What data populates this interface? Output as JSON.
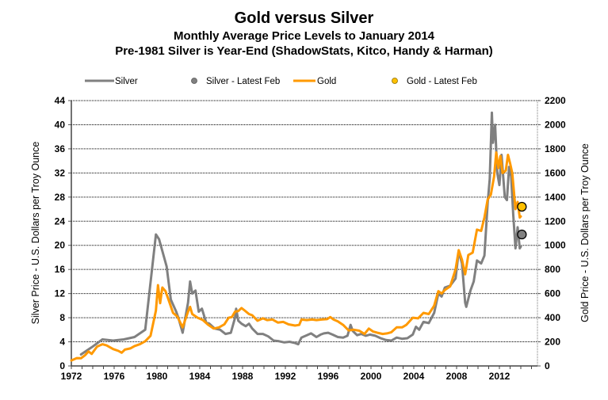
{
  "chart_data": {
    "type": "line",
    "title": "Gold versus Silver",
    "subtitle": "Monthly Average Price Levels to January 2014",
    "subtitle2": "Pre-1981 Silver is Year-End (ShadowStats, Kitco, Handy & Harman)",
    "xlabel": "",
    "ylabel_left": "Silver  Price - U.S. Dollars  per Troy Ounce",
    "ylabel_right": "Gold Price - U.S. Dollars  per Troy Ounce",
    "xlim": [
      1972,
      2015
    ],
    "ylim_left": [
      0,
      44
    ],
    "ylim_right": [
      0,
      2200
    ],
    "x_ticks": [
      "1972",
      "1976",
      "1980",
      "1984",
      "1988",
      "1992",
      "1996",
      "2000",
      "2004",
      "2008",
      "2012"
    ],
    "y_ticks_left": [
      "0",
      "4",
      "8",
      "12",
      "16",
      "20",
      "24",
      "28",
      "32",
      "36",
      "40",
      "44"
    ],
    "y_ticks_right": [
      "0",
      "200",
      "400",
      "600",
      "800",
      "1000",
      "1200",
      "1400",
      "1600",
      "1800",
      "2000",
      "2200"
    ],
    "grid": true,
    "legend_position": "top",
    "legend": [
      {
        "label": "Silver",
        "kind": "line",
        "color": "#808080"
      },
      {
        "label": "Silver - Latest Feb",
        "kind": "marker",
        "color": "#808080"
      },
      {
        "label": "Gold",
        "kind": "line",
        "color": "#FF9900"
      },
      {
        "label": "Gold - Latest Feb",
        "kind": "marker",
        "color": "#FFC000"
      }
    ],
    "series": [
      {
        "name": "Silver",
        "axis": "left",
        "color": "#808080",
        "points": [
          [
            1972.9,
            1.9
          ],
          [
            1973.9,
            3.1
          ],
          [
            1974.9,
            4.4
          ],
          [
            1975.9,
            4.2
          ],
          [
            1976.9,
            4.4
          ],
          [
            1977.9,
            4.8
          ],
          [
            1978.9,
            6.0
          ],
          [
            1979.9,
            21.8
          ],
          [
            1980.2,
            21.0
          ],
          [
            1980.9,
            16.5
          ],
          [
            1981.3,
            11.0
          ],
          [
            1981.8,
            9.0
          ],
          [
            1982.0,
            8.0
          ],
          [
            1982.4,
            5.5
          ],
          [
            1982.9,
            10.5
          ],
          [
            1983.1,
            14.0
          ],
          [
            1983.3,
            12.0
          ],
          [
            1983.6,
            12.5
          ],
          [
            1983.9,
            9.0
          ],
          [
            1984.2,
            9.5
          ],
          [
            1984.6,
            7.2
          ],
          [
            1984.9,
            7.0
          ],
          [
            1985.4,
            6.2
          ],
          [
            1985.9,
            6.0
          ],
          [
            1986.4,
            5.3
          ],
          [
            1986.9,
            5.5
          ],
          [
            1987.3,
            8.0
          ],
          [
            1987.4,
            9.5
          ],
          [
            1987.6,
            7.5
          ],
          [
            1987.9,
            7.0
          ],
          [
            1988.3,
            6.6
          ],
          [
            1988.6,
            7.0
          ],
          [
            1988.9,
            6.2
          ],
          [
            1989.4,
            5.3
          ],
          [
            1989.9,
            5.3
          ],
          [
            1990.4,
            4.9
          ],
          [
            1990.9,
            4.2
          ],
          [
            1991.4,
            4.1
          ],
          [
            1991.9,
            3.9
          ],
          [
            1992.4,
            4.0
          ],
          [
            1992.9,
            3.8
          ],
          [
            1993.2,
            3.6
          ],
          [
            1993.5,
            4.7
          ],
          [
            1993.9,
            5.0
          ],
          [
            1994.4,
            5.4
          ],
          [
            1994.9,
            4.8
          ],
          [
            1995.3,
            5.2
          ],
          [
            1995.6,
            5.4
          ],
          [
            1996.0,
            5.5
          ],
          [
            1996.4,
            5.2
          ],
          [
            1996.9,
            4.8
          ],
          [
            1997.4,
            4.7
          ],
          [
            1997.8,
            5.0
          ],
          [
            1998.1,
            6.8
          ],
          [
            1998.3,
            5.8
          ],
          [
            1998.7,
            5.1
          ],
          [
            1999.1,
            5.3
          ],
          [
            1999.5,
            5.0
          ],
          [
            1999.9,
            5.2
          ],
          [
            2000.4,
            5.0
          ],
          [
            2000.9,
            4.6
          ],
          [
            2001.4,
            4.3
          ],
          [
            2001.9,
            4.2
          ],
          [
            2002.4,
            4.7
          ],
          [
            2002.9,
            4.5
          ],
          [
            2003.4,
            4.6
          ],
          [
            2003.9,
            5.2
          ],
          [
            2004.2,
            6.5
          ],
          [
            2004.5,
            6.0
          ],
          [
            2004.9,
            7.3
          ],
          [
            2005.4,
            7.1
          ],
          [
            2005.9,
            8.8
          ],
          [
            2006.3,
            12.0
          ],
          [
            2006.6,
            11.5
          ],
          [
            2006.9,
            13.0
          ],
          [
            2007.4,
            13.3
          ],
          [
            2007.9,
            14.5
          ],
          [
            2008.2,
            19.0
          ],
          [
            2008.5,
            17.0
          ],
          [
            2008.8,
            10.5
          ],
          [
            2008.9,
            9.8
          ],
          [
            2009.3,
            12.5
          ],
          [
            2009.6,
            14.0
          ],
          [
            2009.9,
            17.5
          ],
          [
            2010.3,
            17.0
          ],
          [
            2010.6,
            18.3
          ],
          [
            2010.9,
            27.0
          ],
          [
            2011.1,
            31.0
          ],
          [
            2011.3,
            42.0
          ],
          [
            2011.4,
            37.0
          ],
          [
            2011.6,
            40.0
          ],
          [
            2011.8,
            32.0
          ],
          [
            2012.0,
            30.0
          ],
          [
            2012.2,
            35.0
          ],
          [
            2012.5,
            28.0
          ],
          [
            2012.7,
            27.5
          ],
          [
            2012.9,
            33.0
          ],
          [
            2013.1,
            31.5
          ],
          [
            2013.3,
            25.0
          ],
          [
            2013.5,
            19.5
          ],
          [
            2013.7,
            23.0
          ],
          [
            2013.9,
            19.5
          ],
          [
            2014.0,
            19.8
          ]
        ]
      },
      {
        "name": "Gold",
        "axis": "right",
        "color": "#FF9900",
        "points": [
          [
            1972.0,
            45
          ],
          [
            1972.5,
            65
          ],
          [
            1972.9,
            64
          ],
          [
            1973.3,
            90
          ],
          [
            1973.6,
            120
          ],
          [
            1973.9,
            100
          ],
          [
            1974.4,
            160
          ],
          [
            1974.9,
            180
          ],
          [
            1975.3,
            170
          ],
          [
            1975.9,
            140
          ],
          [
            1976.4,
            125
          ],
          [
            1976.7,
            110
          ],
          [
            1977.0,
            135
          ],
          [
            1977.5,
            145
          ],
          [
            1977.9,
            165
          ],
          [
            1978.4,
            180
          ],
          [
            1978.9,
            205
          ],
          [
            1979.4,
            250
          ],
          [
            1979.9,
            460
          ],
          [
            1980.1,
            670
          ],
          [
            1980.3,
            520
          ],
          [
            1980.5,
            650
          ],
          [
            1980.8,
            620
          ],
          [
            1981.0,
            570
          ],
          [
            1981.5,
            440
          ],
          [
            1981.9,
            410
          ],
          [
            1982.4,
            320
          ],
          [
            1982.9,
            450
          ],
          [
            1983.1,
            490
          ],
          [
            1983.3,
            430
          ],
          [
            1983.8,
            400
          ],
          [
            1984.3,
            380
          ],
          [
            1984.8,
            340
          ],
          [
            1985.3,
            310
          ],
          [
            1985.8,
            320
          ],
          [
            1986.3,
            345
          ],
          [
            1986.7,
            400
          ],
          [
            1987.0,
            405
          ],
          [
            1987.3,
            450
          ],
          [
            1987.6,
            455
          ],
          [
            1987.9,
            480
          ],
          [
            1988.2,
            460
          ],
          [
            1988.6,
            430
          ],
          [
            1988.9,
            420
          ],
          [
            1989.4,
            375
          ],
          [
            1989.9,
            395
          ],
          [
            1990.3,
            380
          ],
          [
            1990.8,
            385
          ],
          [
            1991.3,
            360
          ],
          [
            1991.8,
            365
          ],
          [
            1992.3,
            345
          ],
          [
            1992.9,
            335
          ],
          [
            1993.3,
            340
          ],
          [
            1993.5,
            385
          ],
          [
            1994.0,
            380
          ],
          [
            1994.5,
            385
          ],
          [
            1994.9,
            380
          ],
          [
            1995.4,
            385
          ],
          [
            1995.9,
            388
          ],
          [
            1996.2,
            405
          ],
          [
            1996.5,
            385
          ],
          [
            1996.9,
            370
          ],
          [
            1997.4,
            340
          ],
          [
            1997.9,
            295
          ],
          [
            1998.4,
            300
          ],
          [
            1998.9,
            292
          ],
          [
            1999.4,
            265
          ],
          [
            1999.8,
            310
          ],
          [
            2000.2,
            285
          ],
          [
            2000.6,
            275
          ],
          [
            2001.1,
            265
          ],
          [
            2001.5,
            270
          ],
          [
            2001.9,
            280
          ],
          [
            2002.4,
            320
          ],
          [
            2002.9,
            320
          ],
          [
            2003.3,
            340
          ],
          [
            2003.9,
            400
          ],
          [
            2004.4,
            395
          ],
          [
            2004.9,
            440
          ],
          [
            2005.4,
            430
          ],
          [
            2005.9,
            500
          ],
          [
            2006.3,
            620
          ],
          [
            2006.6,
            600
          ],
          [
            2006.9,
            630
          ],
          [
            2007.4,
            660
          ],
          [
            2007.9,
            800
          ],
          [
            2008.2,
            960
          ],
          [
            2008.5,
            880
          ],
          [
            2008.8,
            760
          ],
          [
            2009.1,
            920
          ],
          [
            2009.5,
            940
          ],
          [
            2009.9,
            1130
          ],
          [
            2010.3,
            1120
          ],
          [
            2010.6,
            1230
          ],
          [
            2010.9,
            1380
          ],
          [
            2011.2,
            1420
          ],
          [
            2011.5,
            1570
          ],
          [
            2011.7,
            1770
          ],
          [
            2011.9,
            1640
          ],
          [
            2012.1,
            1740
          ],
          [
            2012.3,
            1600
          ],
          [
            2012.6,
            1620
          ],
          [
            2012.8,
            1750
          ],
          [
            2013.0,
            1680
          ],
          [
            2013.2,
            1600
          ],
          [
            2013.5,
            1300
          ],
          [
            2013.7,
            1360
          ],
          [
            2013.9,
            1230
          ],
          [
            2014.0,
            1240
          ]
        ]
      }
    ],
    "markers": [
      {
        "name": "Silver - Latest Feb",
        "axis": "left",
        "x": 2014.1,
        "y": 21.8,
        "color": "#808080"
      },
      {
        "name": "Gold - Latest Feb",
        "axis": "right",
        "x": 2014.1,
        "y": 1320,
        "color": "#FFC000"
      }
    ]
  }
}
